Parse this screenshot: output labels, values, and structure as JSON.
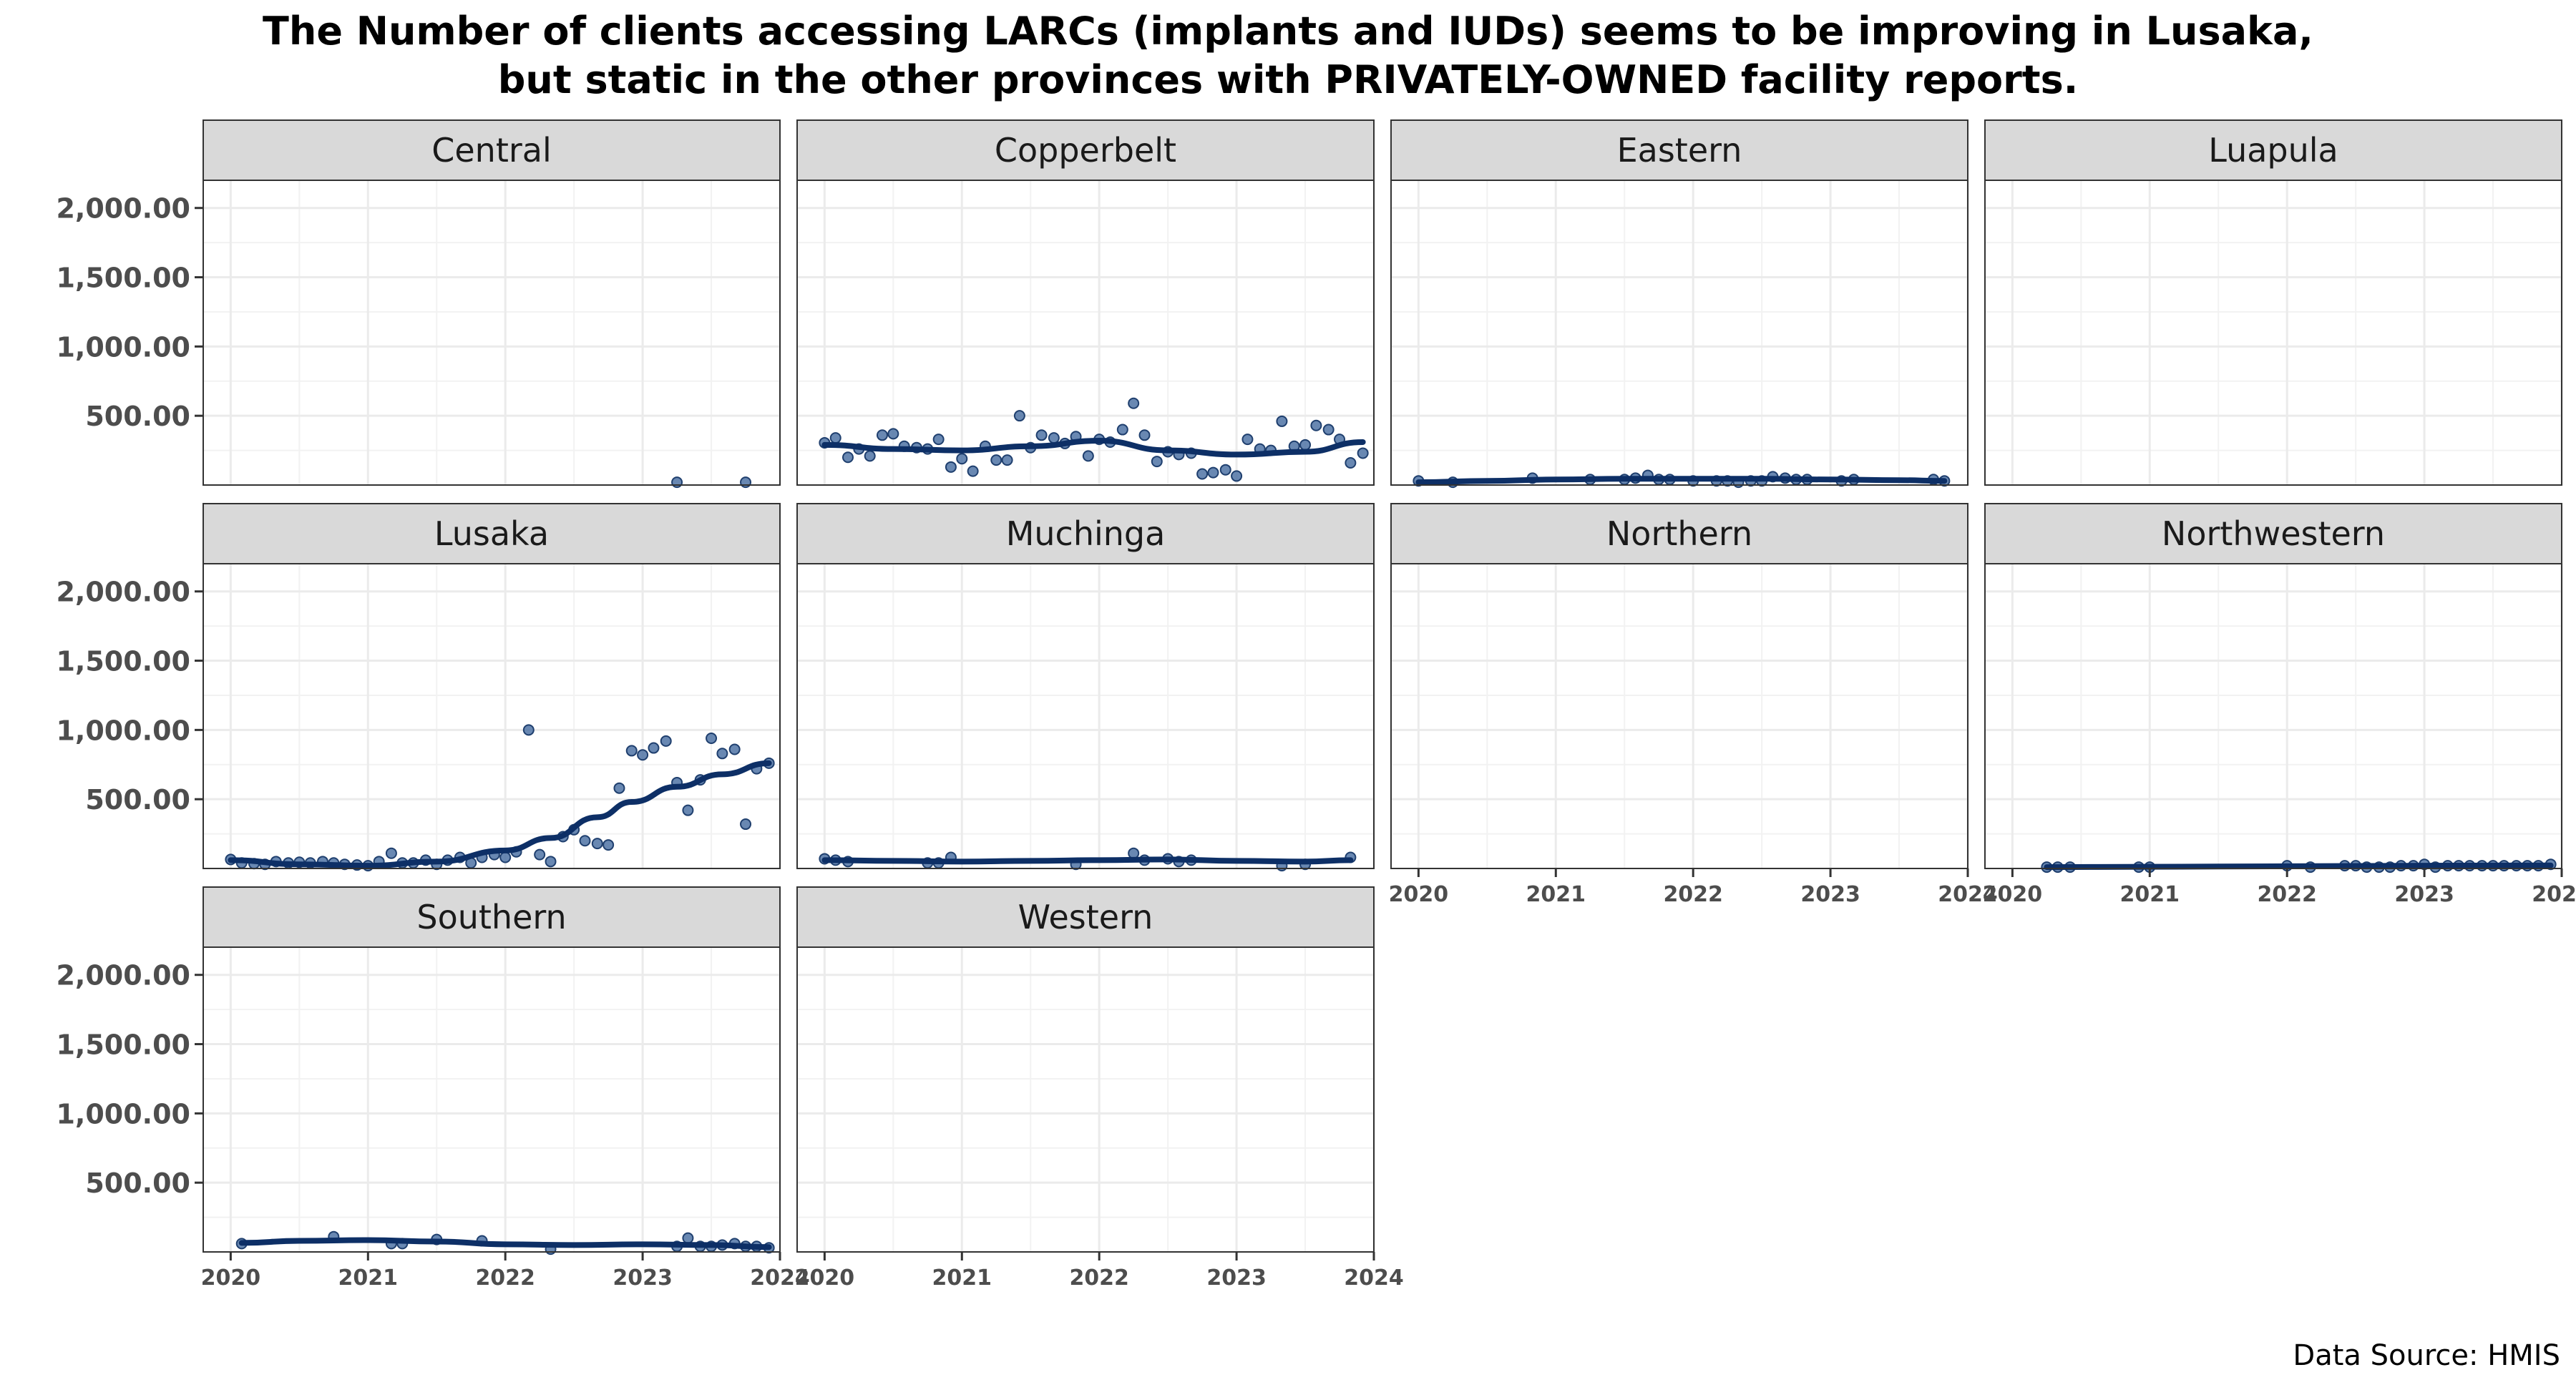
{
  "title_line1": "The Number of clients accessing LARCs (implants and IUDs) seems to be improving in Lusaka,",
  "title_line2": "but static in the other provinces with PRIVATELY-OWNED facility reports.",
  "caption": "Data Source: HMIS",
  "colors": {
    "points": "#4f73a5",
    "point_edge": "#1f3f6e",
    "smooth": "#0d2f66",
    "strip": "#d9d9d9",
    "grid": "#ebebeb"
  },
  "chart_data": {
    "type": "scatter",
    "facets": [
      "Central",
      "Copperbelt",
      "Eastern",
      "Luapula",
      "Lusaka",
      "Muchinga",
      "Northern",
      "Northwestern",
      "Southern",
      "Western"
    ],
    "ylim": [
      0,
      2200
    ],
    "y_ticks": [
      500,
      1000,
      1500,
      2000
    ],
    "y_tick_labels": [
      "500.00",
      "1,000.00",
      "1,500.00",
      "2,000.00"
    ],
    "xlim": [
      2019.8,
      2024.0
    ],
    "x_ticks": [
      2020,
      2021,
      2022,
      2023,
      2024
    ],
    "x_tick_labels": [
      "2020",
      "2021",
      "2022",
      "2023",
      "2024"
    ],
    "grid": true,
    "series": [
      {
        "name": "Central",
        "x": [
          2023.25,
          2023.75
        ],
        "y": [
          20,
          20
        ],
        "smooth_x": [],
        "smooth_y": []
      },
      {
        "name": "Copperbelt",
        "x": [
          2020.0,
          2020.08,
          2020.17,
          2020.25,
          2020.33,
          2020.42,
          2020.5,
          2020.58,
          2020.67,
          2020.75,
          2020.83,
          2020.92,
          2021.0,
          2021.08,
          2021.17,
          2021.25,
          2021.33,
          2021.42,
          2021.5,
          2021.58,
          2021.67,
          2021.75,
          2021.83,
          2021.92,
          2022.0,
          2022.08,
          2022.17,
          2022.25,
          2022.33,
          2022.42,
          2022.5,
          2022.58,
          2022.67,
          2022.75,
          2022.83,
          2022.92,
          2023.0,
          2023.08,
          2023.17,
          2023.25,
          2023.33,
          2023.42,
          2023.5,
          2023.58,
          2023.67,
          2023.75,
          2023.83,
          2023.92
        ],
        "y": [
          305,
          340,
          200,
          260,
          210,
          360,
          370,
          280,
          270,
          260,
          330,
          130,
          190,
          100,
          280,
          180,
          180,
          500,
          270,
          360,
          340,
          300,
          350,
          210,
          330,
          310,
          400,
          590,
          360,
          170,
          240,
          220,
          230,
          80,
          90,
          110,
          65,
          330,
          260,
          250,
          460,
          280,
          290,
          430,
          400,
          330,
          160,
          230
        ],
        "smooth_x": [
          2020.0,
          2020.5,
          2021.0,
          2021.5,
          2022.0,
          2022.5,
          2023.0,
          2023.5,
          2023.92
        ],
        "smooth_y": [
          290,
          260,
          250,
          280,
          320,
          250,
          220,
          240,
          310
        ]
      },
      {
        "name": "Eastern",
        "x": [
          2020.0,
          2020.25,
          2020.83,
          2021.25,
          2021.5,
          2021.58,
          2021.67,
          2021.75,
          2021.83,
          2022.0,
          2022.17,
          2022.25,
          2022.33,
          2022.42,
          2022.5,
          2022.58,
          2022.67,
          2022.75,
          2022.83,
          2023.08,
          2023.17,
          2023.75,
          2023.83
        ],
        "y": [
          30,
          20,
          50,
          40,
          40,
          50,
          70,
          40,
          40,
          30,
          30,
          30,
          20,
          30,
          30,
          60,
          50,
          40,
          40,
          30,
          40,
          40,
          30
        ],
        "smooth_x": [
          2020.0,
          2020.5,
          2021.0,
          2021.5,
          2022.0,
          2022.5,
          2023.0,
          2023.5,
          2023.83
        ],
        "smooth_y": [
          20,
          30,
          40,
          45,
          45,
          45,
          40,
          35,
          30
        ]
      },
      {
        "name": "Luapula",
        "x": [],
        "y": [],
        "smooth_x": [],
        "smooth_y": []
      },
      {
        "name": "Lusaka",
        "x": [
          2020.0,
          2020.08,
          2020.17,
          2020.25,
          2020.33,
          2020.42,
          2020.5,
          2020.58,
          2020.67,
          2020.75,
          2020.83,
          2020.92,
          2021.0,
          2021.08,
          2021.17,
          2021.25,
          2021.33,
          2021.42,
          2021.5,
          2021.58,
          2021.67,
          2021.75,
          2021.83,
          2021.92,
          2022.0,
          2022.08,
          2022.17,
          2022.25,
          2022.33,
          2022.42,
          2022.5,
          2022.58,
          2022.67,
          2022.75,
          2022.83,
          2022.92,
          2023.0,
          2023.08,
          2023.17,
          2023.25,
          2023.33,
          2023.42,
          2023.5,
          2023.58,
          2023.67,
          2023.75,
          2023.83,
          2023.92
        ],
        "y": [
          65,
          40,
          35,
          30,
          50,
          40,
          45,
          40,
          50,
          40,
          30,
          25,
          20,
          50,
          110,
          40,
          40,
          60,
          30,
          60,
          80,
          40,
          80,
          100,
          80,
          120,
          1000,
          100,
          50,
          230,
          280,
          200,
          180,
          170,
          580,
          850,
          820,
          870,
          920,
          620,
          420,
          640,
          940,
          830,
          860,
          320,
          720,
          760
        ],
        "smooth_x": [
          2020.0,
          2020.5,
          2021.0,
          2021.5,
          2022.0,
          2022.33,
          2022.67,
          2022.92,
          2023.25,
          2023.58,
          2023.92
        ],
        "smooth_y": [
          60,
          30,
          20,
          50,
          130,
          220,
          370,
          480,
          590,
          680,
          760
        ]
      },
      {
        "name": "Muchinga",
        "x": [
          2020.0,
          2020.08,
          2020.17,
          2020.75,
          2020.83,
          2020.92,
          2021.83,
          2022.25,
          2022.33,
          2022.5,
          2022.58,
          2022.67,
          2023.33,
          2023.5,
          2023.83
        ],
        "y": [
          70,
          60,
          50,
          40,
          40,
          80,
          30,
          110,
          60,
          70,
          50,
          60,
          20,
          30,
          80
        ],
        "smooth_x": [
          2020.0,
          2020.5,
          2021.0,
          2021.5,
          2022.0,
          2022.5,
          2023.0,
          2023.5,
          2023.83
        ],
        "smooth_y": [
          60,
          55,
          50,
          55,
          60,
          65,
          55,
          50,
          60
        ]
      },
      {
        "name": "Northern",
        "x": [],
        "y": [],
        "smooth_x": [],
        "smooth_y": []
      },
      {
        "name": "Northwestern",
        "x": [
          2020.25,
          2020.33,
          2020.42,
          2020.92,
          2021.0,
          2022.0,
          2022.17,
          2022.42,
          2022.5,
          2022.58,
          2022.67,
          2022.75,
          2022.83,
          2022.92,
          2023.0,
          2023.08,
          2023.17,
          2023.25,
          2023.33,
          2023.42,
          2023.5,
          2023.58,
          2023.67,
          2023.75,
          2023.83,
          2023.92
        ],
        "y": [
          10,
          10,
          10,
          10,
          10,
          20,
          10,
          20,
          20,
          10,
          10,
          10,
          20,
          20,
          30,
          10,
          20,
          20,
          20,
          20,
          20,
          20,
          20,
          20,
          20,
          30
        ],
        "smooth_x": [
          2020.25,
          2021.0,
          2022.0,
          2023.0,
          2023.92
        ],
        "smooth_y": [
          10,
          12,
          16,
          20,
          22
        ]
      },
      {
        "name": "Southern",
        "x": [
          2020.08,
          2020.75,
          2021.17,
          2021.25,
          2021.5,
          2021.83,
          2022.33,
          2023.25,
          2023.33,
          2023.42,
          2023.5,
          2023.58,
          2023.67,
          2023.75,
          2023.83,
          2023.92
        ],
        "y": [
          60,
          110,
          60,
          60,
          90,
          80,
          20,
          40,
          100,
          40,
          40,
          50,
          60,
          40,
          40,
          30
        ],
        "smooth_x": [
          2020.08,
          2020.5,
          2021.0,
          2021.5,
          2022.0,
          2022.5,
          2023.0,
          2023.5,
          2023.92
        ],
        "smooth_y": [
          65,
          80,
          85,
          75,
          55,
          50,
          55,
          50,
          35
        ]
      },
      {
        "name": "Western",
        "x": [],
        "y": [],
        "smooth_x": [],
        "smooth_y": []
      }
    ]
  }
}
